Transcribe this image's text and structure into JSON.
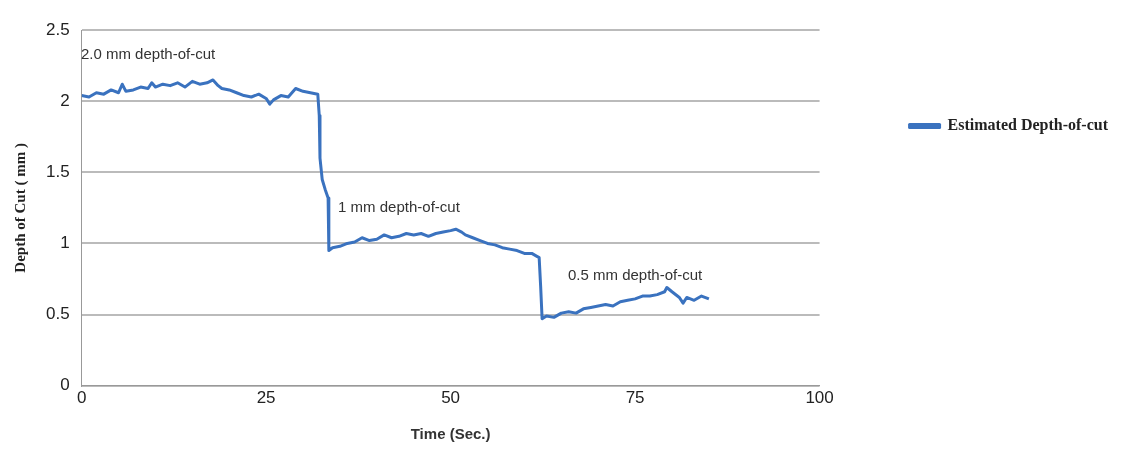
{
  "chart_data": {
    "type": "line",
    "xlabel": "Time (Sec.)",
    "ylabel": "Depth of Cut ( mm )",
    "x": [
      0,
      1,
      2,
      3,
      4,
      5,
      5.5,
      6,
      7,
      8,
      9,
      9.5,
      10,
      11,
      12,
      13,
      14,
      15,
      16,
      17,
      17.8,
      18.5,
      19,
      20,
      21,
      22,
      23,
      24,
      25,
      25.5,
      26,
      27,
      28,
      29,
      30,
      31,
      32,
      32.2,
      32.3,
      32.6,
      33,
      33.4,
      33.5,
      34,
      35,
      36,
      37,
      38,
      39,
      40,
      41,
      42,
      43,
      44,
      45,
      46,
      47,
      48,
      49,
      50,
      50.7,
      51.5,
      52,
      53,
      54,
      55,
      56,
      57,
      58,
      59,
      60,
      61,
      62,
      62.2,
      62.4,
      63,
      64,
      65,
      66,
      67,
      68,
      69,
      70,
      71,
      72,
      73,
      74,
      75,
      76,
      77,
      78,
      79,
      79.3,
      80,
      81,
      81.5,
      82,
      83,
      84,
      85
    ],
    "series": [
      {
        "name": "Estimated Depth-of-cut",
        "color": "#3a72bf",
        "values": [
          2.04,
          2.03,
          2.06,
          2.05,
          2.08,
          2.06,
          2.12,
          2.07,
          2.08,
          2.1,
          2.09,
          2.13,
          2.1,
          2.12,
          2.11,
          2.13,
          2.1,
          2.14,
          2.12,
          2.13,
          2.15,
          2.11,
          2.09,
          2.08,
          2.06,
          2.04,
          2.03,
          2.05,
          2.02,
          1.98,
          2.01,
          2.04,
          2.03,
          2.09,
          2.07,
          2.06,
          2.05,
          1.9,
          1.6,
          1.45,
          1.38,
          1.32,
          0.95,
          0.97,
          0.98,
          1.0,
          1.01,
          1.04,
          1.02,
          1.03,
          1.06,
          1.04,
          1.05,
          1.07,
          1.06,
          1.07,
          1.05,
          1.07,
          1.08,
          1.09,
          1.1,
          1.08,
          1.06,
          1.04,
          1.02,
          1.0,
          0.99,
          0.97,
          0.96,
          0.95,
          0.93,
          0.93,
          0.9,
          0.7,
          0.47,
          0.49,
          0.48,
          0.51,
          0.52,
          0.51,
          0.54,
          0.55,
          0.56,
          0.57,
          0.56,
          0.59,
          0.6,
          0.61,
          0.63,
          0.63,
          0.64,
          0.66,
          0.69,
          0.66,
          0.62,
          0.58,
          0.62,
          0.6,
          0.63,
          0.61
        ]
      }
    ],
    "xlim": [
      0,
      100
    ],
    "xticks": [
      0,
      25,
      50,
      75,
      100
    ],
    "ylim": [
      0,
      2.5
    ],
    "yticks": [
      0,
      0.5,
      1,
      1.5,
      2,
      2.5
    ],
    "grid": "y",
    "legend": "right",
    "marker": "none",
    "line_style": "solid",
    "annotations": [
      "2.0 mm depth-of-cut",
      "1 mm depth-of-cut",
      "0.5 mm depth-of-cut"
    ]
  }
}
